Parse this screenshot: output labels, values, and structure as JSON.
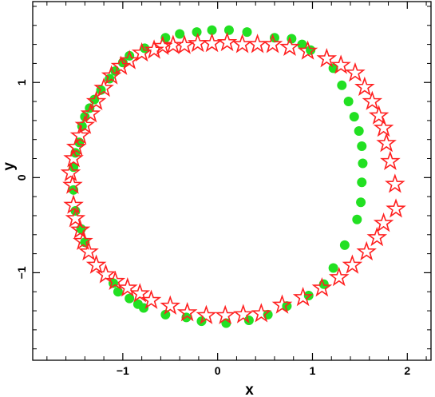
{
  "chart_data": {
    "type": "scatter",
    "title": "",
    "xlabel": "x",
    "ylabel": "y",
    "xlim": [
      -1.95,
      2.25
    ],
    "ylim": [
      -1.92,
      1.85
    ],
    "x_ticks": [
      -1,
      0,
      1,
      2
    ],
    "x_tick_labels": [
      "−1",
      "0",
      "1",
      "2"
    ],
    "y_ticks": [
      -1,
      0,
      1
    ],
    "y_tick_labels": [
      "−1",
      "0",
      "1"
    ],
    "grid": false,
    "series": [
      {
        "marker": "filled-circle",
        "color": "#22e022",
        "points": [
          [
            -0.55,
            1.47
          ],
          [
            -0.4,
            1.51
          ],
          [
            -0.22,
            1.53
          ],
          [
            -0.06,
            1.55
          ],
          [
            0.12,
            1.55
          ],
          [
            0.31,
            1.53
          ],
          [
            -0.77,
            1.36
          ],
          [
            -0.93,
            1.28
          ],
          [
            -1.0,
            1.21
          ],
          [
            -1.08,
            1.12
          ],
          [
            -1.14,
            1.04
          ],
          [
            -1.23,
            0.92
          ],
          [
            -1.3,
            0.82
          ],
          [
            -1.35,
            0.73
          ],
          [
            -1.4,
            0.64
          ],
          [
            -1.43,
            0.54
          ],
          [
            -1.46,
            0.37
          ],
          [
            -1.5,
            0.26
          ],
          [
            -1.52,
            0.11
          ],
          [
            -1.52,
            -0.13
          ],
          [
            -1.5,
            -0.35
          ],
          [
            -1.44,
            -0.54
          ],
          [
            -1.4,
            -0.68
          ],
          [
            -1.1,
            -1.11
          ],
          [
            -1.05,
            -1.2
          ],
          [
            -0.93,
            -1.27
          ],
          [
            -0.84,
            -1.33
          ],
          [
            -0.78,
            -1.37
          ],
          [
            -0.55,
            -1.44
          ],
          [
            -0.33,
            -1.47
          ],
          [
            -0.17,
            -1.51
          ],
          [
            0.09,
            -1.53
          ],
          [
            0.33,
            -1.5
          ],
          [
            0.53,
            -1.44
          ],
          [
            0.73,
            -1.35
          ],
          [
            0.96,
            -1.24
          ],
          [
            1.12,
            -1.12
          ],
          [
            1.22,
            -0.95
          ],
          [
            1.34,
            -0.71
          ],
          [
            1.47,
            -0.44
          ],
          [
            1.51,
            -0.26
          ],
          [
            1.52,
            -0.05
          ],
          [
            1.53,
            0.15
          ],
          [
            1.52,
            0.33
          ],
          [
            1.49,
            0.49
          ],
          [
            1.44,
            0.64
          ],
          [
            1.38,
            0.8
          ],
          [
            1.31,
            0.97
          ],
          [
            1.22,
            1.15
          ],
          [
            0.98,
            1.34
          ],
          [
            0.89,
            1.4
          ],
          [
            0.78,
            1.46
          ],
          [
            0.6,
            1.47
          ]
        ]
      },
      {
        "marker": "open-star",
        "color": "#ff2020",
        "points": [
          [
            -0.47,
            1.39
          ],
          [
            -0.35,
            1.39
          ],
          [
            -0.21,
            1.41
          ],
          [
            -0.06,
            1.41
          ],
          [
            0.1,
            1.42
          ],
          [
            0.26,
            1.4
          ],
          [
            -0.67,
            1.34
          ],
          [
            -0.8,
            1.31
          ],
          [
            -0.93,
            1.23
          ],
          [
            -1.02,
            1.17
          ],
          [
            -1.12,
            1.07
          ],
          [
            -1.2,
            0.94
          ],
          [
            -1.28,
            0.8
          ],
          [
            -1.34,
            0.67
          ],
          [
            -1.4,
            0.55
          ],
          [
            -1.45,
            0.44
          ],
          [
            -1.49,
            0.32
          ],
          [
            -1.52,
            0.2
          ],
          [
            -1.55,
            0.05
          ],
          [
            -1.53,
            -0.08
          ],
          [
            -1.52,
            -0.29
          ],
          [
            -1.5,
            -0.43
          ],
          [
            -1.45,
            -0.55
          ],
          [
            -1.42,
            -0.67
          ],
          [
            -1.36,
            -0.78
          ],
          [
            -1.28,
            -0.92
          ],
          [
            -1.18,
            -1.02
          ],
          [
            -1.08,
            -1.09
          ],
          [
            -0.95,
            -1.16
          ],
          [
            -0.82,
            -1.22
          ],
          [
            -0.7,
            -1.29
          ],
          [
            -0.5,
            -1.35
          ],
          [
            -0.32,
            -1.42
          ],
          [
            -0.12,
            -1.45
          ],
          [
            0.08,
            -1.45
          ],
          [
            0.27,
            -1.44
          ],
          [
            0.46,
            -1.43
          ],
          [
            0.68,
            -1.34
          ],
          [
            0.9,
            -1.26
          ],
          [
            1.1,
            -1.16
          ],
          [
            1.28,
            -1.05
          ],
          [
            1.42,
            -0.92
          ],
          [
            1.57,
            -0.78
          ],
          [
            1.68,
            -0.63
          ],
          [
            1.75,
            -0.48
          ],
          [
            1.88,
            -0.33
          ],
          [
            1.87,
            -0.07
          ],
          [
            1.82,
            0.17
          ],
          [
            1.78,
            0.36
          ],
          [
            1.75,
            0.52
          ],
          [
            1.7,
            0.65
          ],
          [
            1.63,
            0.8
          ],
          [
            1.55,
            0.95
          ],
          [
            1.45,
            1.1
          ],
          [
            1.3,
            1.18
          ],
          [
            1.15,
            1.25
          ],
          [
            0.95,
            1.33
          ],
          [
            0.76,
            1.37
          ],
          [
            0.58,
            1.4
          ],
          [
            0.42,
            1.4
          ],
          [
            -0.58,
            1.38
          ]
        ]
      }
    ]
  }
}
